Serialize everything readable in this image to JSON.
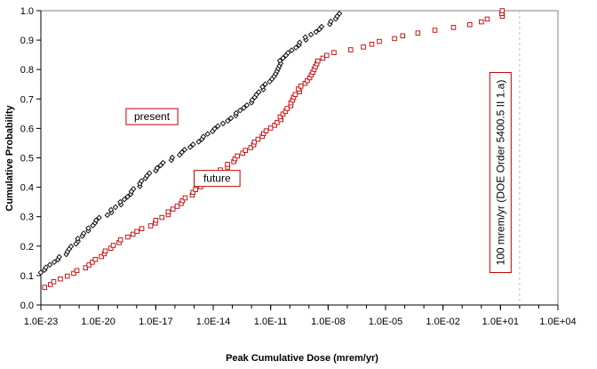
{
  "chart_data": {
    "type": "scatter",
    "title": "",
    "xlabel": "Peak Cumulative Dose (mrem/yr)",
    "ylabel": "Cumulative Probability",
    "x_scale": "log",
    "xlim_exp": [
      -23,
      4
    ],
    "ylim": [
      0,
      1
    ],
    "x_ticks": [
      {
        "exp": -23,
        "label": "1.0E-23"
      },
      {
        "exp": -20,
        "label": "1.0E-20"
      },
      {
        "exp": -17,
        "label": "1.0E-17"
      },
      {
        "exp": -14,
        "label": "1.0E-14"
      },
      {
        "exp": -11,
        "label": "1.0E-11"
      },
      {
        "exp": -8,
        "label": "1.0E-08"
      },
      {
        "exp": -5,
        "label": "1.0E-05"
      },
      {
        "exp": -2,
        "label": "1.0E-02"
      },
      {
        "exp": 1,
        "label": "1.0E+01"
      },
      {
        "exp": 4,
        "label": "1.0E+04"
      }
    ],
    "y_ticks": [
      {
        "v": 0.0,
        "label": "0.0"
      },
      {
        "v": 0.1,
        "label": "0.1"
      },
      {
        "v": 0.2,
        "label": "0.2"
      },
      {
        "v": 0.3,
        "label": "0.3"
      },
      {
        "v": 0.4,
        "label": "0.4"
      },
      {
        "v": 0.5,
        "label": "0.5"
      },
      {
        "v": 0.6,
        "label": "0.6"
      },
      {
        "v": 0.7,
        "label": "0.7"
      },
      {
        "v": 0.8,
        "label": "0.8"
      },
      {
        "v": 0.9,
        "label": "0.9"
      },
      {
        "v": 1.0,
        "label": "1.0"
      }
    ],
    "grid": false,
    "series": [
      {
        "name": "present",
        "marker": "diamond",
        "color": "#000000",
        "anchors_log10x": [
          -23.0,
          -22.4,
          -21.8,
          -21.2,
          -20.6,
          -20.0,
          -19.3,
          -18.6,
          -18.0,
          -17.4,
          -16.6,
          -15.6,
          -14.7,
          -13.8,
          -13.0,
          -12.2,
          -11.6,
          -11.1,
          -10.7,
          -10.3,
          -9.8,
          -9.3,
          -8.6,
          -7.9,
          -7.4
        ],
        "anchors_y": [
          0.11,
          0.14,
          0.17,
          0.21,
          0.25,
          0.29,
          0.32,
          0.36,
          0.4,
          0.44,
          0.48,
          0.52,
          0.56,
          0.6,
          0.64,
          0.68,
          0.72,
          0.76,
          0.8,
          0.84,
          0.87,
          0.9,
          0.93,
          0.96,
          0.99
        ]
      },
      {
        "name": "future",
        "marker": "square",
        "color": "#c00000",
        "anchors_log10x": [
          -22.8,
          -22.2,
          -21.2,
          -20.4,
          -19.6,
          -18.8,
          -17.6,
          -16.6,
          -15.8,
          -15.1,
          -14.3,
          -13.5,
          -12.8,
          -12.0,
          -11.3,
          -10.7,
          -10.2,
          -9.8,
          -9.4,
          -9.0,
          -8.6,
          -8.0,
          -7.5,
          -6.5,
          -5.6,
          -5.0,
          -4.3,
          -3.6,
          -2.8,
          -1.8,
          -0.6,
          0.2,
          1.0,
          1.1
        ],
        "anchors_y": [
          0.06,
          0.08,
          0.11,
          0.14,
          0.18,
          0.22,
          0.26,
          0.3,
          0.34,
          0.38,
          0.42,
          0.46,
          0.5,
          0.54,
          0.58,
          0.62,
          0.66,
          0.7,
          0.74,
          0.78,
          0.82,
          0.85,
          0.86,
          0.87,
          0.89,
          0.9,
          0.91,
          0.92,
          0.93,
          0.94,
          0.95,
          0.97,
          0.98,
          1.0
        ]
      }
    ],
    "annotations": [
      {
        "id": "present",
        "text": "present",
        "log10x": -17.2,
        "y": 0.64
      },
      {
        "id": "future",
        "text": "future",
        "log10x": -13.8,
        "y": 0.43
      },
      {
        "id": "reference",
        "text": "100 mrem/yr (DOE Order 5400.5 II 1.a)",
        "log10x": 1.0,
        "y": 0.45,
        "rotated": true
      }
    ],
    "reference_line_log10x": 2,
    "points_per_series": 100
  }
}
